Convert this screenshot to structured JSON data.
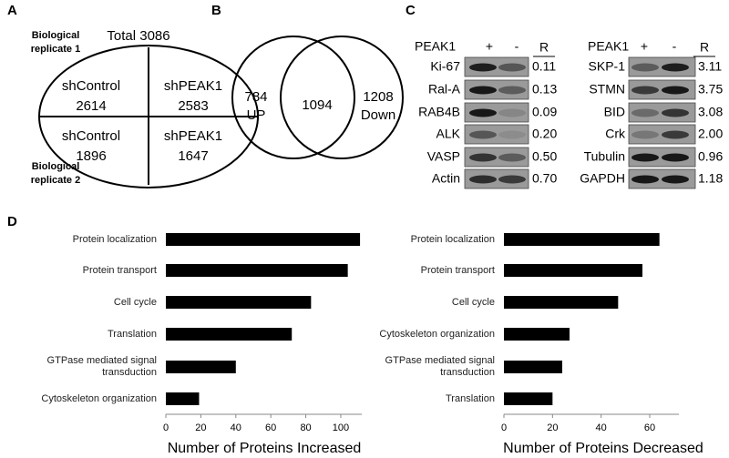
{
  "panels": {
    "A": {
      "label": "A",
      "total": "Total 3086",
      "replicate_1": "Biological replicate 1",
      "replicate_2": "Biological replicate 2",
      "cells": [
        {
          "name": "shControl",
          "count": 2614
        },
        {
          "name": "shPEAK1",
          "count": 2583
        },
        {
          "name": "shControl",
          "count": 1896
        },
        {
          "name": "shPEAK1",
          "count": 1647
        }
      ]
    },
    "B": {
      "label": "B",
      "left": {
        "count": 784,
        "text": "UP"
      },
      "center": 1094,
      "right": {
        "count": 1208,
        "text": "Down"
      }
    },
    "C": {
      "label": "C",
      "blots": [
        {
          "header": "PEAK1",
          "plus": "+",
          "minus": "-",
          "ratio_header": "R",
          "rows": [
            {
              "name": "Ki-67",
              "ratio": "0.11"
            },
            {
              "name": "Ral-A",
              "ratio": "0.13"
            },
            {
              "name": "RAB4B",
              "ratio": "0.09"
            },
            {
              "name": "ALK",
              "ratio": "0.20"
            },
            {
              "name": "VASP",
              "ratio": "0.50"
            },
            {
              "name": "Actin",
              "ratio": "0.70"
            }
          ]
        },
        {
          "header": "PEAK1",
          "plus": "+",
          "minus": "-",
          "ratio_header": "R",
          "rows": [
            {
              "name": "SKP-1",
              "ratio": "3.11"
            },
            {
              "name": "STMN",
              "ratio": "3.75"
            },
            {
              "name": "BID",
              "ratio": "3.08"
            },
            {
              "name": "Crk",
              "ratio": "2.00"
            },
            {
              "name": "Tubulin",
              "ratio": "0.96"
            },
            {
              "name": "GAPDH",
              "ratio": "1.18"
            }
          ]
        }
      ]
    },
    "D": {
      "label": "D"
    }
  },
  "chart_data": [
    {
      "type": "bar",
      "orientation": "horizontal",
      "x_label": "Number of Proteins Increased",
      "categories": [
        "Protein localization",
        "Protein transport",
        "Cell cycle",
        "Translation",
        "GTPase mediated signal transduction",
        "Cytoskeleton organization"
      ],
      "values": [
        111,
        104,
        83,
        72,
        40,
        19
      ],
      "color": "#000000",
      "xlim": [
        0,
        112
      ],
      "xticks": [
        0,
        20,
        40,
        60,
        80,
        100
      ]
    },
    {
      "type": "bar",
      "orientation": "horizontal",
      "x_label": "Number of Proteins Decreased",
      "categories": [
        "Protein localization",
        "Protein transport",
        "Cell cycle",
        "Cytoskeleton organization",
        "GTPase mediated signal transduction",
        "Translation"
      ],
      "values": [
        64,
        57,
        47,
        27,
        24,
        20
      ],
      "color": "#000000",
      "xlim": [
        0,
        72
      ],
      "xticks": [
        0,
        20,
        40,
        60
      ]
    }
  ]
}
